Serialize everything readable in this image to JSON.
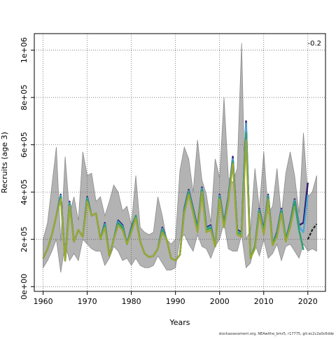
{
  "chart_data": {
    "type": "line",
    "title": "",
    "xlabel": "Years",
    "ylabel": "Recruits (age 3)",
    "corner_label": "-0.2",
    "footnote": "stockassessment.org, NEAwithe_bmr5, r17775, git:ec2c2a0c6dde",
    "xlim": [
      1958,
      2024
    ],
    "ylim": [
      -20000,
      1070000
    ],
    "x_ticks": [
      1960,
      1970,
      1980,
      1990,
      2000,
      2010,
      2020
    ],
    "y_ticks": [
      0,
      200000,
      400000,
      600000,
      800000,
      1000000
    ],
    "y_tick_labels": [
      "0e+00",
      "2e+05",
      "4e+05",
      "6e+05",
      "8e+05",
      "1e+06"
    ],
    "grid": true,
    "years": [
      1960,
      1961,
      1962,
      1963,
      1964,
      1965,
      1966,
      1967,
      1968,
      1969,
      1970,
      1971,
      1972,
      1973,
      1974,
      1975,
      1976,
      1977,
      1978,
      1979,
      1980,
      1981,
      1982,
      1983,
      1984,
      1985,
      1986,
      1987,
      1988,
      1989,
      1990,
      1991,
      1992,
      1993,
      1994,
      1995,
      1996,
      1997,
      1998,
      1999,
      2000,
      2001,
      2002,
      2003,
      2004,
      2005,
      2006,
      2007,
      2008,
      2009,
      2010,
      2011,
      2012,
      2013,
      2014,
      2015,
      2016,
      2017,
      2018,
      2019,
      2020,
      2021,
      2022
    ],
    "ci_lower": [
      80000,
      110000,
      150000,
      200000,
      60000,
      180000,
      110000,
      140000,
      110000,
      200000,
      180000,
      160000,
      150000,
      150000,
      90000,
      120000,
      170000,
      150000,
      110000,
      120000,
      90000,
      120000,
      90000,
      80000,
      80000,
      90000,
      130000,
      100000,
      70000,
      70000,
      80000,
      200000,
      220000,
      180000,
      150000,
      220000,
      170000,
      160000,
      120000,
      170000,
      200000,
      270000,
      160000,
      150000,
      150000,
      220000,
      80000,
      100000,
      180000,
      130000,
      200000,
      120000,
      140000,
      180000,
      110000,
      170000,
      180000,
      150000,
      120000,
      180000,
      150000,
      160000,
      150000
    ],
    "ci_upper": [
      200000,
      270000,
      430000,
      590000,
      190000,
      550000,
      310000,
      380000,
      280000,
      570000,
      470000,
      480000,
      360000,
      380000,
      300000,
      360000,
      430000,
      400000,
      320000,
      340000,
      260000,
      470000,
      250000,
      230000,
      220000,
      230000,
      380000,
      300000,
      200000,
      180000,
      200000,
      490000,
      590000,
      540000,
      400000,
      620000,
      450000,
      390000,
      270000,
      540000,
      460000,
      800000,
      460000,
      440000,
      500000,
      1030000,
      200000,
      240000,
      500000,
      330000,
      570000,
      310000,
      340000,
      500000,
      300000,
      480000,
      570000,
      470000,
      310000,
      650000,
      380000,
      400000,
      470000
    ],
    "series": [
      {
        "name": "",
        "color": "#2e1a6e",
        "values": [
          120000,
          160000,
          220000,
          300000,
          390000,
          110000,
          360000,
          190000,
          240000,
          210000,
          380000,
          300000,
          310000,
          200000,
          270000,
          130000,
          200000,
          280000,
          260000,
          180000,
          250000,
          300000,
          190000,
          140000,
          125000,
          130000,
          160000,
          250000,
          200000,
          120000,
          110000,
          135000,
          330000,
          410000,
          330000,
          250000,
          420000,
          250000,
          260000,
          170000,
          390000,
          270000,
          380000,
          550000,
          240000,
          230000,
          700000,
          120000,
          170000,
          330000,
          240000,
          390000,
          180000,
          230000,
          330000,
          200000,
          270000,
          370000,
          260000,
          270000,
          440000,
          null,
          null
        ]
      },
      {
        "name": "",
        "color": "#4fa8d8",
        "values": [
          120000,
          160000,
          220000,
          300000,
          385000,
          110000,
          355000,
          190000,
          240000,
          210000,
          375000,
          300000,
          310000,
          200000,
          265000,
          130000,
          200000,
          275000,
          255000,
          180000,
          245000,
          300000,
          190000,
          140000,
          125000,
          130000,
          160000,
          245000,
          200000,
          120000,
          110000,
          135000,
          325000,
          405000,
          325000,
          245000,
          415000,
          245000,
          255000,
          170000,
          385000,
          265000,
          375000,
          540000,
          235000,
          225000,
          690000,
          120000,
          170000,
          325000,
          235000,
          385000,
          180000,
          225000,
          325000,
          200000,
          265000,
          365000,
          255000,
          230000,
          390000,
          null,
          null
        ]
      },
      {
        "name": "",
        "color": "#2aa06a",
        "values": [
          120000,
          160000,
          220000,
          300000,
          380000,
          110000,
          350000,
          190000,
          240000,
          210000,
          370000,
          300000,
          310000,
          200000,
          260000,
          130000,
          200000,
          270000,
          250000,
          180000,
          240000,
          300000,
          190000,
          140000,
          125000,
          130000,
          160000,
          240000,
          200000,
          120000,
          110000,
          135000,
          320000,
          400000,
          320000,
          240000,
          410000,
          240000,
          250000,
          170000,
          380000,
          260000,
          370000,
          530000,
          230000,
          220000,
          650000,
          120000,
          170000,
          320000,
          230000,
          380000,
          180000,
          220000,
          320000,
          200000,
          260000,
          360000,
          240000,
          155000,
          null,
          null,
          null
        ]
      },
      {
        "name": "",
        "color": "#9aa832",
        "values": [
          120000,
          160000,
          220000,
          300000,
          370000,
          110000,
          340000,
          190000,
          240000,
          210000,
          360000,
          300000,
          310000,
          200000,
          250000,
          130000,
          200000,
          260000,
          240000,
          180000,
          230000,
          290000,
          190000,
          140000,
          125000,
          130000,
          160000,
          230000,
          200000,
          120000,
          110000,
          135000,
          310000,
          390000,
          310000,
          230000,
          400000,
          230000,
          240000,
          170000,
          370000,
          250000,
          360000,
          520000,
          220000,
          210000,
          620000,
          120000,
          160000,
          310000,
          220000,
          370000,
          175000,
          210000,
          310000,
          190000,
          250000,
          340000,
          null,
          null,
          null,
          null,
          null
        ]
      }
    ],
    "forecast": {
      "color": "#222222",
      "x": [
        2020,
        2021,
        2022
      ],
      "values": [
        200000,
        240000,
        265000
      ]
    }
  }
}
